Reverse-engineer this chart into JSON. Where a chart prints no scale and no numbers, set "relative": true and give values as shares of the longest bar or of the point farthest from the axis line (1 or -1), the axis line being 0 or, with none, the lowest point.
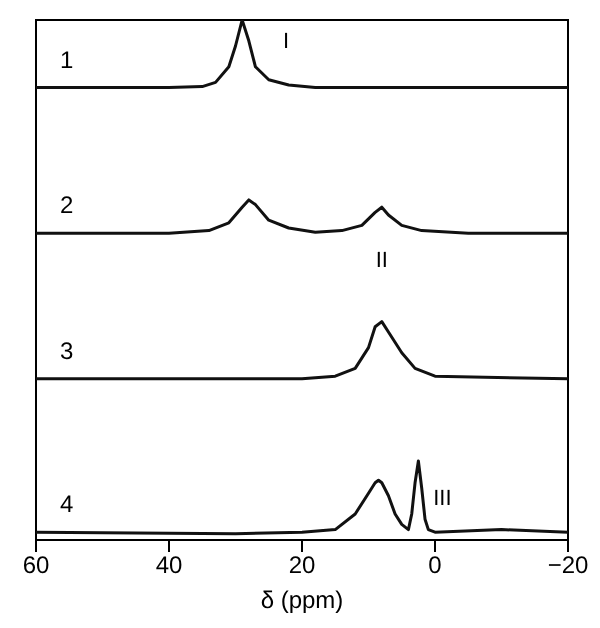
{
  "chart_data": {
    "type": "line",
    "relative": true,
    "xlabel": "δ (ppm)",
    "xlim": [
      60,
      -20
    ],
    "xticks": [
      60,
      40,
      20,
      0,
      {
        "value": -20,
        "label": "−20"
      }
    ],
    "grid": false,
    "legend": false,
    "marker": "none",
    "line_style": "solid",
    "series": [
      {
        "name": "1",
        "color": "#111111",
        "x": [
          60,
          50,
          40,
          35,
          33,
          31,
          30,
          29,
          28,
          27,
          25,
          22,
          18,
          10,
          0,
          -10,
          -20
        ],
        "values": [
          0.87,
          0.87,
          0.87,
          0.872,
          0.88,
          0.91,
          0.95,
          1.0,
          0.96,
          0.91,
          0.885,
          0.875,
          0.87,
          0.87,
          0.87,
          0.87,
          0.87
        ]
      },
      {
        "name": "2",
        "color": "#111111",
        "x": [
          60,
          40,
          34,
          31,
          29,
          28,
          27,
          25,
          22,
          18,
          14,
          11,
          9,
          8,
          7,
          5,
          2,
          -5,
          -20
        ],
        "values": [
          0.59,
          0.59,
          0.595,
          0.61,
          0.64,
          0.654,
          0.645,
          0.615,
          0.6,
          0.592,
          0.595,
          0.605,
          0.63,
          0.64,
          0.625,
          0.605,
          0.595,
          0.59,
          0.59
        ]
      },
      {
        "name": "3",
        "color": "#111111",
        "x": [
          60,
          40,
          20,
          15,
          12,
          10,
          9,
          8,
          7,
          5,
          3,
          0,
          -20
        ],
        "values": [
          0.31,
          0.31,
          0.31,
          0.315,
          0.33,
          0.37,
          0.41,
          0.42,
          0.4,
          0.36,
          0.33,
          0.315,
          0.31
        ]
      },
      {
        "name": "4",
        "color": "#111111",
        "x": [
          60,
          30,
          20,
          15,
          12,
          10,
          9,
          8.5,
          8,
          7,
          6,
          5,
          4,
          3.5,
          3,
          2.5,
          2,
          1.5,
          1,
          0,
          -10,
          -20
        ],
        "values": [
          0.015,
          0.012,
          0.015,
          0.02,
          0.05,
          0.09,
          0.11,
          0.115,
          0.11,
          0.085,
          0.05,
          0.03,
          0.02,
          0.05,
          0.11,
          0.152,
          0.1,
          0.04,
          0.02,
          0.015,
          0.02,
          0.015
        ]
      }
    ],
    "annotations": [
      {
        "text": "I",
        "x": 29,
        "y": 1.0
      },
      {
        "text": "II",
        "x": 8,
        "y": 0.64
      },
      {
        "text": "III",
        "x": 2.5,
        "y": 0.152
      }
    ]
  }
}
